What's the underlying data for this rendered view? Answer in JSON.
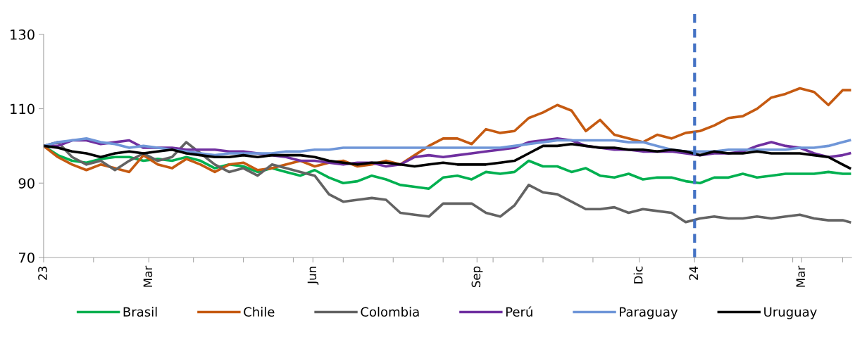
{
  "chart_data": {
    "type": "line",
    "x": [
      "2023-01-01",
      "2023-01-09",
      "2023-01-17",
      "2023-01-25",
      "2023-02-02",
      "2023-02-10",
      "2023-02-18",
      "2023-02-26",
      "2023-03-06",
      "2023-03-14",
      "2023-03-22",
      "2023-03-30",
      "2023-04-07",
      "2023-04-15",
      "2023-04-23",
      "2023-05-01",
      "2023-05-09",
      "2023-05-17",
      "2023-05-25",
      "2023-06-02",
      "2023-06-10",
      "2023-06-18",
      "2023-06-26",
      "2023-07-04",
      "2023-07-12",
      "2023-07-20",
      "2023-07-28",
      "2023-08-05",
      "2023-08-13",
      "2023-08-21",
      "2023-08-29",
      "2023-09-06",
      "2023-09-14",
      "2023-09-22",
      "2023-09-30",
      "2023-10-08",
      "2023-10-16",
      "2023-10-24",
      "2023-11-01",
      "2023-11-09",
      "2023-11-17",
      "2023-11-25",
      "2023-12-03",
      "2023-12-11",
      "2023-12-19",
      "2023-12-27",
      "2024-01-04",
      "2024-01-12",
      "2024-01-20",
      "2024-01-28",
      "2024-02-05",
      "2024-02-13",
      "2024-02-21",
      "2024-02-29",
      "2024-03-08",
      "2024-03-16",
      "2024-03-24",
      "2024-03-28"
    ],
    "series": [
      {
        "name": "Brasil",
        "color": "#00b050",
        "values": [
          100,
          97.5,
          96,
          95.5,
          96.5,
          97,
          97,
          96,
          96.5,
          96,
          97,
          96,
          94,
          95,
          94.5,
          93,
          94,
          93,
          92,
          93.5,
          91.5,
          90,
          90.5,
          92,
          91,
          89.5,
          89,
          88.5,
          91.5,
          92,
          91,
          93,
          92.5,
          93,
          96,
          94.5,
          94.5,
          93,
          94,
          92,
          91.5,
          92.5,
          91,
          91.5,
          91.5,
          90.5,
          90,
          91.5,
          91.5,
          92.5,
          91.5,
          92,
          92.5,
          92.5,
          92.5,
          93,
          92.5,
          92.5
        ]
      },
      {
        "name": "Chile",
        "color": "#c55a11",
        "values": [
          100,
          97,
          95,
          93.5,
          95,
          94,
          93,
          97.5,
          95,
          94,
          96.5,
          95,
          93,
          95,
          95.5,
          93.5,
          94,
          95,
          96,
          94.5,
          95.5,
          96,
          94.5,
          95,
          96,
          95,
          97.5,
          100,
          102,
          102,
          100.5,
          104.5,
          103.5,
          104,
          107.5,
          109,
          111,
          109.5,
          104,
          107,
          103,
          102,
          101,
          103,
          102,
          103.5,
          104,
          105.5,
          107.5,
          108,
          110,
          113,
          114,
          115.5,
          114.5,
          111,
          115,
          115
        ]
      },
      {
        "name": "Colombia",
        "color": "#636363",
        "values": [
          100,
          101,
          97,
          95,
          96,
          93.5,
          96,
          98,
          96,
          97,
          101,
          98,
          95,
          93,
          94,
          92,
          95,
          94,
          93,
          92,
          87,
          85,
          85.5,
          86,
          85.5,
          82,
          81.5,
          81,
          84.5,
          84.5,
          84.5,
          82,
          81,
          84,
          89.5,
          87.5,
          87,
          85,
          83,
          83,
          83.5,
          82,
          83,
          82.5,
          82,
          79.5,
          80.5,
          81,
          80.5,
          80.5,
          81,
          80.5,
          81,
          81.5,
          80.5,
          80,
          80,
          79.5
        ]
      },
      {
        "name": "Perú",
        "color": "#7030a0",
        "values": [
          100,
          100,
          101.5,
          101.5,
          100.5,
          101,
          101.5,
          99.5,
          99.5,
          99.5,
          99,
          99,
          99,
          98.5,
          98.5,
          98,
          97.5,
          97,
          96,
          96,
          95.5,
          95,
          95.5,
          95.5,
          94.5,
          95,
          97,
          97.5,
          97,
          97.5,
          98,
          98.5,
          99,
          99.5,
          101,
          101.5,
          102,
          101.5,
          100,
          99.5,
          99,
          99,
          98.5,
          98.5,
          98.5,
          98,
          97.5,
          98,
          98,
          98.5,
          100,
          101,
          100,
          99.5,
          98,
          97,
          97.5,
          98
        ]
      },
      {
        "name": "Paraguay",
        "color": "#6f96d8",
        "values": [
          100,
          101,
          101.5,
          102,
          101,
          100.5,
          99.5,
          100,
          99.5,
          99,
          98.5,
          98,
          97.5,
          98,
          98,
          98,
          98,
          98.5,
          98.5,
          99,
          99,
          99.5,
          99.5,
          99.5,
          99.5,
          99.5,
          99.5,
          99.5,
          99.5,
          99.5,
          99.5,
          99.5,
          99.5,
          100,
          100.5,
          101,
          101.5,
          101.5,
          101.5,
          101.5,
          101.5,
          101,
          101,
          100,
          99,
          98.5,
          98.5,
          98.5,
          99,
          99,
          99,
          99,
          99,
          99.5,
          99.5,
          100,
          101,
          101.5
        ]
      },
      {
        "name": "Uruguay",
        "color": "#000000",
        "values": [
          100,
          99.5,
          98.5,
          98,
          97,
          98,
          98.5,
          98,
          98.5,
          99,
          98,
          97.5,
          97,
          97,
          97.5,
          97,
          97.5,
          97.5,
          97.5,
          97,
          96,
          95.5,
          95,
          95.5,
          95.5,
          95,
          94.5,
          95,
          95.5,
          95,
          95,
          95,
          95.5,
          96,
          98,
          100,
          100,
          100.5,
          100,
          99.5,
          99.5,
          99,
          99,
          98.5,
          99,
          98.5,
          97.5,
          98.5,
          98,
          98,
          98.5,
          98,
          98,
          98,
          97.5,
          97,
          95,
          94
        ]
      }
    ],
    "xlim": [
      "2023-01-01",
      "2024-03-29"
    ],
    "xticks": [
      {
        "value": "2023-01-01",
        "label": "23"
      },
      {
        "value": "2023-01-29",
        "label": null
      },
      {
        "value": "2023-03-01",
        "label": "Mar"
      },
      {
        "value": "2023-03-26",
        "label": null
      },
      {
        "value": "2023-04-23",
        "label": null
      },
      {
        "value": "2023-05-21",
        "label": null
      },
      {
        "value": "2023-06-01",
        "label": "Jun"
      },
      {
        "value": "2023-06-18",
        "label": null
      },
      {
        "value": "2023-07-16",
        "label": null
      },
      {
        "value": "2023-08-13",
        "label": null
      },
      {
        "value": "2023-09-01",
        "label": "Sep"
      },
      {
        "value": "2023-09-10",
        "label": null
      },
      {
        "value": "2023-10-08",
        "label": null
      },
      {
        "value": "2023-11-05",
        "label": null
      },
      {
        "value": "2023-12-01",
        "label": "Dic"
      },
      {
        "value": "2024-01-01",
        "label": "24"
      },
      {
        "value": "2024-01-28",
        "label": null
      },
      {
        "value": "2024-02-25",
        "label": null
      },
      {
        "value": "2024-03-01",
        "label": "Mar"
      },
      {
        "value": "2024-03-24",
        "label": null
      }
    ],
    "ylim": [
      70,
      130
    ],
    "yticks": [
      70,
      90,
      110,
      130
    ],
    "ref_lines": [
      {
        "axis": "x",
        "value": "2024-01-01",
        "color": "#4472c4",
        "line_style": "dashed"
      }
    ],
    "grid": false,
    "legend": "bottom"
  }
}
